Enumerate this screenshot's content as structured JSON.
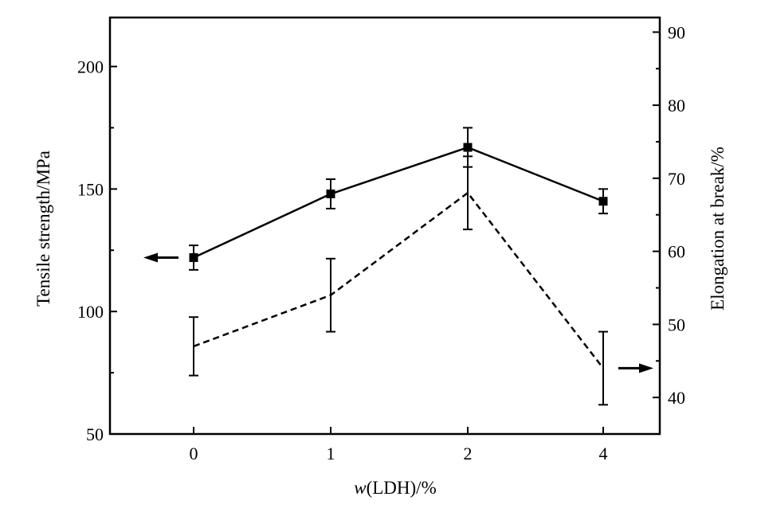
{
  "chart_data": {
    "type": "line",
    "categories": [
      "0",
      "1",
      "2",
      "4"
    ],
    "xlabel_var": "w",
    "xlabel_rest": "(LDH)/%",
    "ylabel": "Tensile strength/MPa",
    "y2label": "Elongation at break/%",
    "ylim": [
      50,
      220
    ],
    "y2lim": [
      35,
      92
    ],
    "yticks": [
      50,
      100,
      150,
      200
    ],
    "y2ticks": [
      40,
      50,
      60,
      70,
      80,
      90
    ],
    "series": [
      {
        "axis": "left",
        "style": "solid",
        "marker": "square",
        "values": [
          122,
          148,
          167,
          145
        ],
        "errors": [
          5,
          6,
          8,
          5
        ]
      },
      {
        "axis": "right",
        "style": "dashed",
        "marker": "none",
        "values": [
          47,
          54,
          68,
          44
        ],
        "errors": [
          4,
          5,
          5,
          5
        ]
      }
    ]
  }
}
